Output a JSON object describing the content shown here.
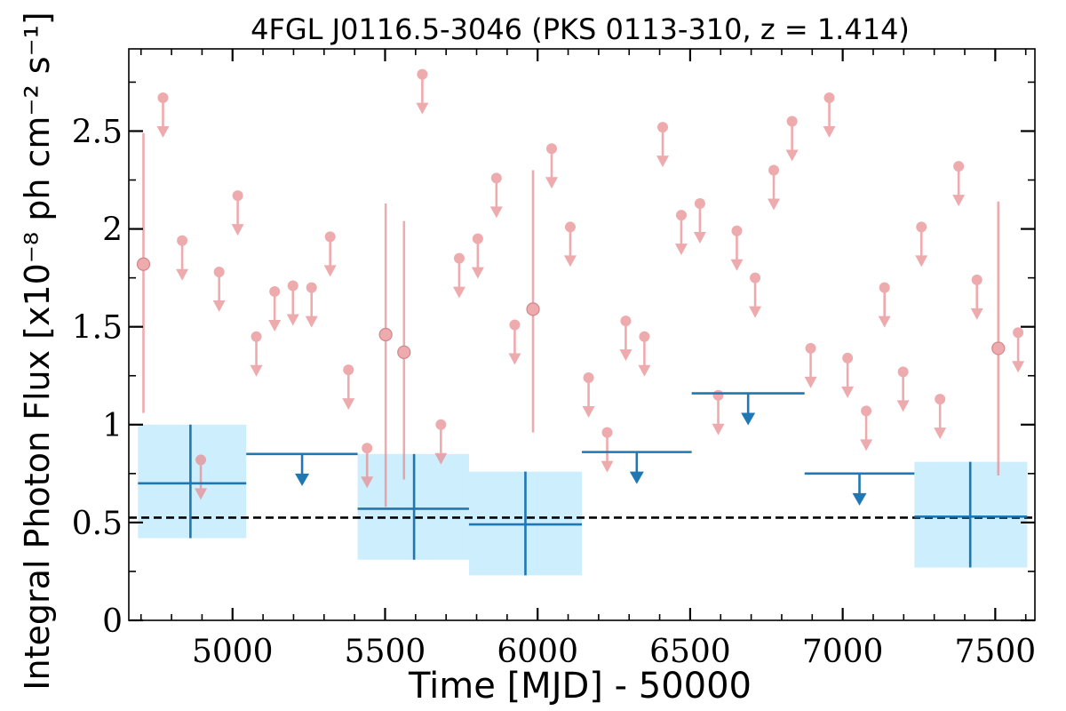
{
  "chart_data": {
    "type": "scatter",
    "title": "4FGL J0116.5-3046 (PKS 0113-310, z = 1.414)",
    "xlabel": "Time [MJD] - 50000",
    "ylabel": "Integral Photon Flux [x10⁻⁸ ph cm⁻² s⁻¹]",
    "xlim": [
      4660,
      7630
    ],
    "ylim": [
      0,
      2.92
    ],
    "x_ticks": [
      5000,
      5500,
      6000,
      6500,
      7000,
      7500
    ],
    "y_ticks": [
      0,
      0.5,
      1,
      1.5,
      2,
      2.5
    ],
    "y_tick_labels": [
      "0",
      "0.5",
      "1",
      "1.5",
      "2",
      "2.5"
    ],
    "reference_line": {
      "y": 0.525,
      "style": "dashed",
      "color": "#000000"
    },
    "colors": {
      "short_bins": "#e8888c",
      "long_bins": "#1f77b4",
      "long_bin_band": "#cdeefc"
    },
    "series": [
      {
        "binning": "short",
        "detections": [
          {
            "x": 4708,
            "y": 1.82,
            "ylo": 1.06,
            "yhi": 2.49
          },
          {
            "x": 5502,
            "y": 1.46,
            "ylo": 0.58,
            "yhi": 2.13
          },
          {
            "x": 5562,
            "y": 1.37,
            "ylo": 0.72,
            "yhi": 2.04
          },
          {
            "x": 5985,
            "y": 1.59,
            "ylo": 0.96,
            "yhi": 2.3
          },
          {
            "x": 7510,
            "y": 1.39,
            "ylo": 0.74,
            "yhi": 2.14
          }
        ],
        "upper_limits": [
          {
            "x": 4772,
            "y": 2.67
          },
          {
            "x": 4835,
            "y": 1.94
          },
          {
            "x": 4896,
            "y": 0.82
          },
          {
            "x": 4956,
            "y": 1.78
          },
          {
            "x": 5017,
            "y": 2.17
          },
          {
            "x": 5078,
            "y": 1.45
          },
          {
            "x": 5138,
            "y": 1.68
          },
          {
            "x": 5198,
            "y": 1.71
          },
          {
            "x": 5259,
            "y": 1.7
          },
          {
            "x": 5320,
            "y": 1.96
          },
          {
            "x": 5380,
            "y": 1.28
          },
          {
            "x": 5441,
            "y": 0.88
          },
          {
            "x": 5622,
            "y": 2.79
          },
          {
            "x": 5683,
            "y": 1.0
          },
          {
            "x": 5743,
            "y": 1.85
          },
          {
            "x": 5804,
            "y": 1.95
          },
          {
            "x": 5865,
            "y": 2.26
          },
          {
            "x": 5925,
            "y": 1.51
          },
          {
            "x": 6046,
            "y": 2.41
          },
          {
            "x": 6107,
            "y": 2.01
          },
          {
            "x": 6167,
            "y": 1.24
          },
          {
            "x": 6228,
            "y": 0.96
          },
          {
            "x": 6289,
            "y": 1.53
          },
          {
            "x": 6350,
            "y": 1.45
          },
          {
            "x": 6410,
            "y": 2.52
          },
          {
            "x": 6471,
            "y": 2.07
          },
          {
            "x": 6532,
            "y": 2.13
          },
          {
            "x": 6592,
            "y": 1.15
          },
          {
            "x": 6653,
            "y": 1.99
          },
          {
            "x": 6713,
            "y": 1.75
          },
          {
            "x": 6774,
            "y": 2.3
          },
          {
            "x": 6834,
            "y": 2.55
          },
          {
            "x": 6895,
            "y": 1.39
          },
          {
            "x": 6956,
            "y": 2.67
          },
          {
            "x": 7016,
            "y": 1.34
          },
          {
            "x": 7077,
            "y": 1.07
          },
          {
            "x": 7137,
            "y": 1.7
          },
          {
            "x": 7198,
            "y": 1.27
          },
          {
            "x": 7258,
            "y": 2.01
          },
          {
            "x": 7319,
            "y": 1.13
          },
          {
            "x": 7380,
            "y": 2.32
          },
          {
            "x": 7440,
            "y": 1.74
          },
          {
            "x": 7575,
            "y": 1.47
          }
        ]
      },
      {
        "binning": "long",
        "detections": [
          {
            "x": 4862,
            "xlo": 4690,
            "xhi": 5045,
            "y": 0.7,
            "ylo": 0.42,
            "yhi": 1.0
          },
          {
            "x": 5595,
            "xlo": 5410,
            "xhi": 5775,
            "y": 0.57,
            "ylo": 0.31,
            "yhi": 0.85
          },
          {
            "x": 5960,
            "xlo": 5775,
            "xhi": 6145,
            "y": 0.49,
            "ylo": 0.23,
            "yhi": 0.76
          },
          {
            "x": 7418,
            "xlo": 7235,
            "xhi": 7605,
            "y": 0.53,
            "ylo": 0.27,
            "yhi": 0.81
          }
        ],
        "upper_limits": [
          {
            "x": 5228,
            "xlo": 5045,
            "xhi": 5410,
            "y": 0.85
          },
          {
            "x": 6325,
            "xlo": 6145,
            "xhi": 6505,
            "y": 0.86
          },
          {
            "x": 6690,
            "xlo": 6505,
            "xhi": 6875,
            "y": 1.16
          },
          {
            "x": 7055,
            "xlo": 6875,
            "xhi": 7235,
            "y": 0.75
          }
        ]
      }
    ]
  }
}
